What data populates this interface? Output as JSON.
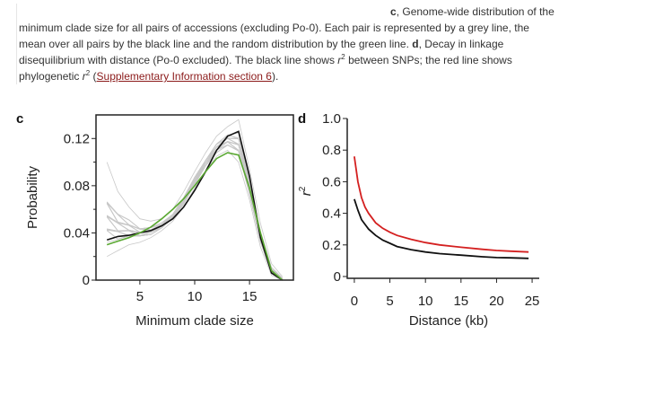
{
  "caption": {
    "line1_label": "c",
    "line1_text": ", Genome-wide distribution of the",
    "line2": "minimum clade size for all pairs of accessions (excluding Po-0). Each pair is represented by a grey line, the",
    "line3_a": "mean over all pairs by the black line and the random distribution by the green line. ",
    "line3_label": "d",
    "line3_b": ", Decay in linkage",
    "line4_a": "disequilibrium with distance (Po-0 excluded). The black line shows ",
    "line4_r": "r",
    "line4_sup": "2",
    "line4_b": " between SNPs; the red line shows",
    "line5_a": "phylogenetic ",
    "line5_r": "r",
    "line5_sup": "2",
    "line5_b": " (",
    "line5_link": "Supplementary Information section 6",
    "line5_c": ")."
  },
  "colors": {
    "grey_lines": "#c8c8c8",
    "mean_line": "#111111",
    "random_line": "#5aa832",
    "phylo_line": "#d42020",
    "snp_line": "#111111"
  },
  "chart_data": [
    {
      "type": "line",
      "panel_label": "c",
      "xlabel": "Minimum clade size",
      "ylabel": "Probability",
      "xlim": [
        1,
        19
      ],
      "ylim": [
        0,
        0.14
      ],
      "xticks": [
        5,
        10,
        15
      ],
      "xtick_labels": [
        "5",
        "10",
        "15"
      ],
      "yticks": [
        0,
        0.04,
        0.08,
        0.12
      ],
      "ytick_labels": [
        "0",
        "0.04",
        "0.08",
        "0.12"
      ],
      "grey_band": {
        "x": [
          2,
          3,
          4,
          5,
          6,
          7,
          8,
          9,
          10,
          11,
          12,
          13,
          14,
          15,
          16,
          17,
          18
        ],
        "low": [
          0.02,
          0.025,
          0.03,
          0.032,
          0.036,
          0.042,
          0.05,
          0.062,
          0.078,
          0.093,
          0.105,
          0.11,
          0.1,
          0.068,
          0.028,
          0.004,
          0.0
        ],
        "high": [
          0.1,
          0.075,
          0.062,
          0.052,
          0.05,
          0.052,
          0.06,
          0.075,
          0.092,
          0.108,
          0.122,
          0.13,
          0.136,
          0.094,
          0.048,
          0.014,
          0.003
        ]
      },
      "series": [
        {
          "x": [
            2,
            3,
            4,
            5,
            6,
            7,
            8,
            9,
            10,
            11,
            12,
            13,
            14,
            15,
            16,
            17,
            18
          ],
          "values": [
            0.034,
            0.037,
            0.038,
            0.04,
            0.042,
            0.046,
            0.052,
            0.062,
            0.076,
            0.092,
            0.11,
            0.122,
            0.126,
            0.088,
            0.036,
            0.006,
            0.0
          ]
        },
        {
          "x": [
            2,
            3,
            4,
            5,
            6,
            7,
            8,
            9,
            10,
            11,
            12,
            13,
            14,
            15,
            16,
            17,
            18
          ],
          "values": [
            0.03,
            0.033,
            0.036,
            0.04,
            0.045,
            0.052,
            0.06,
            0.069,
            0.08,
            0.092,
            0.103,
            0.108,
            0.106,
            0.078,
            0.04,
            0.008,
            0.0
          ]
        }
      ]
    },
    {
      "type": "line",
      "panel_label": "d",
      "xlabel": "Distance (kb)",
      "ylabel_r": "r",
      "ylabel_sup": "2",
      "xlim": [
        -1,
        26
      ],
      "ylim": [
        0,
        1.0
      ],
      "xticks": [
        0,
        5,
        10,
        15,
        20,
        25
      ],
      "xtick_labels": [
        "0",
        "5",
        "10",
        "15",
        "20",
        "25"
      ],
      "yticks": [
        0,
        0.2,
        0.4,
        0.6,
        0.8,
        1.0
      ],
      "ytick_labels": [
        "0",
        "0.2",
        "0.4",
        "0.6",
        "0.8",
        "1.0"
      ],
      "series": [
        {
          "x": [
            0,
            0.5,
            1,
            1.5,
            2,
            3,
            4,
            5,
            6,
            8,
            10,
            12,
            15,
            18,
            20,
            22,
            24.5
          ],
          "values": [
            0.76,
            0.6,
            0.5,
            0.44,
            0.4,
            0.34,
            0.305,
            0.28,
            0.26,
            0.235,
            0.215,
            0.2,
            0.185,
            0.172,
            0.165,
            0.16,
            0.155
          ]
        },
        {
          "x": [
            0,
            0.5,
            1,
            1.5,
            2,
            3,
            4,
            5,
            6,
            8,
            10,
            12,
            15,
            18,
            20,
            22,
            24.5
          ],
          "values": [
            0.49,
            0.42,
            0.36,
            0.33,
            0.3,
            0.26,
            0.23,
            0.21,
            0.19,
            0.17,
            0.155,
            0.145,
            0.135,
            0.125,
            0.12,
            0.118,
            0.115
          ]
        }
      ]
    }
  ]
}
